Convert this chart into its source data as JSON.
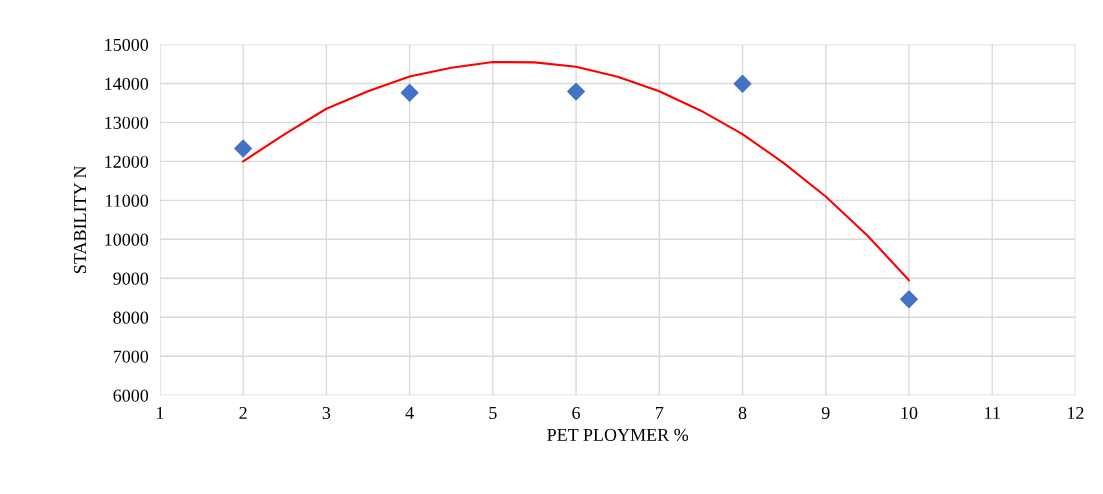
{
  "chart_data": {
    "type": "scatter",
    "xlabel": "PET PLOYMER %",
    "ylabel": "STABILITY N",
    "xlim": [
      1,
      12
    ],
    "xticks": [
      1,
      2,
      3,
      4,
      5,
      6,
      7,
      8,
      9,
      10,
      11,
      12
    ],
    "ylim": [
      6000,
      15000
    ],
    "yticks": [
      6000,
      7000,
      8000,
      9000,
      10000,
      11000,
      12000,
      13000,
      14000,
      15000
    ],
    "grid": true,
    "legend": false,
    "series": [
      {
        "color": "#4472c4",
        "marker": "diamond",
        "x": [
          2,
          4,
          6,
          8,
          10
        ],
        "values": [
          12330,
          13760,
          13790,
          13990,
          8460
        ]
      },
      {
        "type": "line",
        "color": "#ff0000",
        "marker": "none",
        "line_style": "solid",
        "x": [
          2,
          2.5,
          3,
          3.5,
          4,
          4.5,
          5,
          5.5,
          6,
          6.5,
          7,
          7.5,
          8,
          8.5,
          9,
          9.5,
          10
        ],
        "values": [
          12000,
          12700,
          13350,
          13800,
          14180,
          14400,
          14550,
          14540,
          14430,
          14170,
          13800,
          13300,
          12700,
          11950,
          11100,
          10100,
          8950
        ]
      }
    ]
  }
}
